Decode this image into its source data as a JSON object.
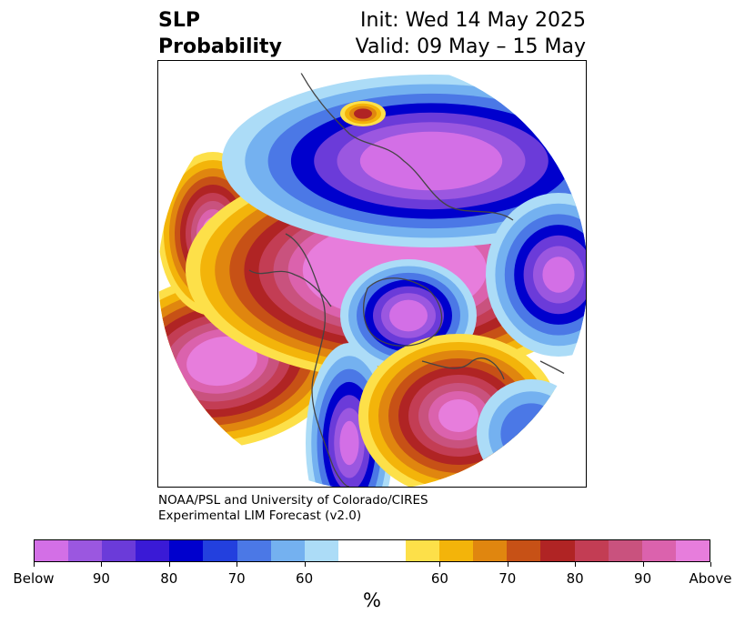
{
  "title": {
    "left_line1": "SLP",
    "left_line2": "Probability",
    "right_line1": "Init: Wed 14 May 2025",
    "right_line2": "Valid: 09 May – 15 May"
  },
  "credit": {
    "line1": "NOAA/PSL and University of Colorado/CIRES",
    "line2": "Experimental LIM Forecast (v2.0)"
  },
  "colorbar": {
    "units": "%",
    "colors": [
      "#d36fe6",
      "#9b57e0",
      "#6b3bd9",
      "#3a1ad6",
      "#0000cd",
      "#2340de",
      "#4b78e6",
      "#74b1f0",
      "#acdcf7",
      "#ffffff",
      "#ffffff",
      "#fde049",
      "#f3b40a",
      "#e0860f",
      "#c75116",
      "#b02424",
      "#c33d54",
      "#c9527e",
      "#db62ad",
      "#e77ddc"
    ],
    "labels": [
      "Below",
      "90",
      "80",
      "70",
      "60",
      "60",
      "70",
      "80",
      "90",
      "Above"
    ]
  },
  "map": {
    "palette": {
      "deep_below": "#d36fe6",
      "below_purple": "#9b57e0",
      "below_violet": "#6b3bd9",
      "below_blue": "#0000cd",
      "below_mid": "#4b78e6",
      "below_light": "#74b1f0",
      "below_pale": "#acdcf7",
      "neutral": "#ffffff",
      "above_yellow": "#fde049",
      "above_gold": "#f3b40a",
      "above_orange": "#e0860f",
      "above_rust": "#c75116",
      "above_red": "#b02424",
      "above_rose": "#c33d54",
      "above_pink": "#c9527e",
      "above_magenta": "#db62ad",
      "above_light": "#e77ddc",
      "coastline": "#444444"
    }
  }
}
